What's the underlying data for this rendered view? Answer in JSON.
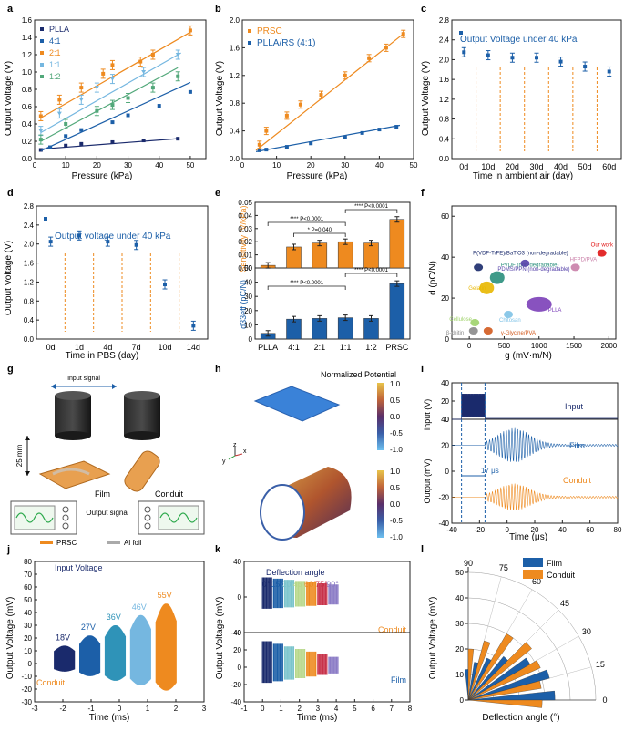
{
  "figure": {
    "colors": {
      "orange": "#ee8a1f",
      "blue": "#1c5fa8",
      "navy": "#1a2a6c",
      "light": "#75b7e0",
      "teal": "#7bc4cc",
      "green": "#52a87a",
      "dark": "#222222"
    }
  },
  "panels": {
    "a": {
      "letter": "a",
      "title": "",
      "xlabel": "Pressure (kPa)",
      "ylabel": "Output Voltage (V)"
    },
    "b": {
      "letter": "b",
      "title": "",
      "xlabel": "Pressure (kPa)",
      "ylabel": "Output Voltage (V)"
    },
    "c": {
      "letter": "c",
      "xlabel": "Time in ambient air (day)",
      "ylabel": "Output Voltage (V)"
    },
    "d": {
      "letter": "d",
      "xlabel": "Time in PBS (day)",
      "ylabel": "Output Voltage (V)"
    },
    "e": {
      "letter": "e",
      "ylabel_top": "Sensitivity (V/kPa)",
      "ylabel_bottom": "d33eff (pC/N)"
    },
    "f": {
      "letter": "f",
      "xlabel": "g  (mV·m/N)",
      "ylabel": "d  (pC/N)"
    },
    "g": {
      "letter": "g",
      "input_signal": "Input signal",
      "height": "25 mm",
      "film": "Film",
      "conduit": "Conduit",
      "output_signal": "Output signal",
      "legend_prsc": "PRSC",
      "legend_al": "Al foil"
    },
    "h": {
      "letter": "h",
      "title": "Normalized Potential",
      "ticks": [
        "1.0",
        "0.5",
        "0.0",
        "-0.5",
        "-1.0"
      ],
      "axis_z": "z",
      "axis_x": "x",
      "axis_y": "y"
    },
    "i": {
      "letter": "i",
      "xlabel": "Time (μs)",
      "ylabel_input": "Input (V)",
      "ylabel_output": "Output (mV)",
      "lbl_input": "Input",
      "lbl_film": "Film",
      "lbl_conduit": "Conduit",
      "delay": "17 μs"
    },
    "j": {
      "letter": "j",
      "xlabel": "Time (ms)",
      "ylabel": "Output Voltage (mV)",
      "title": "Input Voltage",
      "corner": "Conduit"
    },
    "k": {
      "letter": "k",
      "xlabel": "Time (ms)",
      "ylabel": "Output Voltage (mV)",
      "title": "Deflection angle",
      "lbl_conduit": "Conduit",
      "lbl_film": "Film"
    },
    "l": {
      "letter": "l",
      "xlabel": "Deflection angle (°)",
      "ylabel": "Output Voltage (mV)"
    }
  },
  "chart_data": [
    {
      "id": "a",
      "type": "scatter",
      "xlim": [
        0,
        55
      ],
      "ylim": [
        0,
        1.6
      ],
      "xticks": [
        0,
        10,
        20,
        30,
        40,
        50
      ],
      "yticks": [
        0.0,
        0.2,
        0.4,
        0.6,
        0.8,
        1.0,
        1.2,
        1.4,
        1.6
      ],
      "series": [
        {
          "name": "PLLA",
          "color": "#1a2a6c",
          "x": [
            2,
            5,
            10,
            15,
            25,
            35,
            46
          ],
          "y": [
            0.1,
            0.13,
            0.15,
            0.17,
            0.19,
            0.21,
            0.23
          ],
          "fit": [
            [
              2,
              0.11
            ],
            [
              46,
              0.23
            ]
          ]
        },
        {
          "name": "4:1",
          "color": "#1c5fa8",
          "x": [
            5,
            10,
            15,
            25,
            30,
            40,
            50
          ],
          "y": [
            0.13,
            0.26,
            0.33,
            0.42,
            0.5,
            0.61,
            0.77
          ],
          "fit": [
            [
              2,
              0.09
            ],
            [
              50,
              0.88
            ]
          ]
        },
        {
          "name": "2:1",
          "color": "#ee8a1f",
          "x": [
            2,
            8,
            15,
            22,
            25,
            34,
            38,
            50
          ],
          "y": [
            0.49,
            0.68,
            0.82,
            0.98,
            1.08,
            1.12,
            1.2,
            1.48
          ],
          "fit": [
            [
              2,
              0.47
            ],
            [
              50,
              1.46
            ]
          ]
        },
        {
          "name": "1:1",
          "color": "#75b7e0",
          "x": [
            2,
            8,
            15,
            20,
            25,
            35,
            46
          ],
          "y": [
            0.32,
            0.52,
            0.68,
            0.82,
            0.92,
            1.0,
            1.2
          ],
          "fit": [
            [
              2,
              0.3
            ],
            [
              47,
              1.22
            ]
          ]
        },
        {
          "name": "1:2",
          "color": "#52a87a",
          "x": [
            2,
            10,
            20,
            25,
            30,
            38,
            46
          ],
          "y": [
            0.22,
            0.4,
            0.55,
            0.62,
            0.7,
            0.82,
            0.95
          ],
          "fit": [
            [
              2,
              0.2
            ],
            [
              46,
              1.05
            ]
          ]
        }
      ]
    },
    {
      "id": "b",
      "type": "scatter",
      "xlim": [
        0,
        50
      ],
      "ylim": [
        0,
        2.0
      ],
      "xticks": [
        0,
        10,
        20,
        30,
        40,
        50
      ],
      "yticks": [
        0.0,
        0.4,
        0.8,
        1.2,
        1.6,
        2.0
      ],
      "series": [
        {
          "name": "PRSC",
          "color": "#ee8a1f",
          "x": [
            5,
            7,
            13,
            17,
            23,
            30,
            37,
            42,
            47
          ],
          "y": [
            0.2,
            0.4,
            0.62,
            0.78,
            0.92,
            1.2,
            1.45,
            1.6,
            1.8
          ],
          "fit": [
            [
              4,
              0.12
            ],
            [
              47,
              1.8
            ]
          ]
        },
        {
          "name": "PLLA/RS (4:1)",
          "color": "#1c5fa8",
          "x": [
            5,
            7,
            13,
            20,
            30,
            35,
            40,
            45
          ],
          "y": [
            0.12,
            0.13,
            0.17,
            0.22,
            0.31,
            0.37,
            0.42,
            0.46
          ],
          "fit": [
            [
              4,
              0.1
            ],
            [
              46,
              0.48
            ]
          ]
        }
      ]
    },
    {
      "id": "c",
      "type": "scatter",
      "title": "Output Voltage under 40 kPa",
      "categories": [
        "0d",
        "10d",
        "20d",
        "30d",
        "40d",
        "50d",
        "60d"
      ],
      "values": [
        2.15,
        2.09,
        2.04,
        2.04,
        1.96,
        1.86,
        1.76
      ],
      "ylim": [
        0,
        2.8
      ],
      "yticks": [
        0.0,
        0.4,
        0.8,
        1.2,
        1.6,
        2.0,
        2.4,
        2.8
      ]
    },
    {
      "id": "d",
      "type": "scatter",
      "title": "Output voltage under 40 kPa",
      "categories": [
        "0d",
        "1d",
        "4d",
        "7d",
        "10d",
        "14d"
      ],
      "values": [
        2.05,
        2.18,
        2.05,
        1.98,
        1.15,
        0.28
      ],
      "ylim": [
        0,
        2.8
      ],
      "yticks": [
        0.0,
        0.4,
        0.8,
        1.2,
        1.6,
        2.0,
        2.4,
        2.8
      ]
    },
    {
      "id": "e",
      "type": "bar",
      "categories": [
        "PLLA",
        "4:1",
        "2:1",
        "1:1",
        "1:2",
        "PRSC"
      ],
      "top": {
        "values": [
          0.002,
          0.016,
          0.019,
          0.02,
          0.019,
          0.037
        ],
        "ylim": [
          0,
          0.05
        ],
        "yticks": [
          0.0,
          0.01,
          0.02,
          0.03,
          0.04,
          0.05
        ],
        "color": "#ee8a1f",
        "annotations": [
          "**** P<0.0001",
          "* P=0.040",
          "**** P<0.0001"
        ]
      },
      "bottom": {
        "values": [
          4,
          14,
          14.5,
          15,
          14.5,
          39
        ],
        "ylim": [
          0,
          50
        ],
        "yticks": [
          0,
          10,
          20,
          30,
          40,
          50
        ],
        "color": "#1c5fa8",
        "annotations": [
          "**** P<0.0001",
          "**** P<0.0001"
        ]
      }
    },
    {
      "id": "f",
      "type": "scatter",
      "xlim": [
        -250,
        2100
      ],
      "ylim": [
        0,
        65
      ],
      "xticks": [
        0,
        500,
        1000,
        1500,
        2000
      ],
      "yticks": [
        0,
        20,
        40,
        60
      ],
      "points": [
        {
          "label": "P(VDF-TrFE)/BaTiO3 (non-degradable)",
          "x": 130,
          "y": 35,
          "color": "#1a2a6c"
        },
        {
          "label": "PVDF (non-degradable)",
          "x": 400,
          "y": 30,
          "color": "#2a8f7c"
        },
        {
          "label": "Gelatin",
          "x": 250,
          "y": 25,
          "color": "#e8b700"
        },
        {
          "label": "PDMS/PPN (non-degradable)",
          "x": 800,
          "y": 37,
          "color": "#5440a8"
        },
        {
          "label": "HFPD/PVA",
          "x": 1520,
          "y": 35,
          "color": "#c97fa8"
        },
        {
          "label": "Our work",
          "x": 1900,
          "y": 42,
          "color": "#e01515"
        },
        {
          "label": "PLLA",
          "x": 1000,
          "y": 17,
          "color": "#7b3fb8"
        },
        {
          "label": "Chitosan",
          "x": 560,
          "y": 12,
          "color": "#7ec2e6"
        },
        {
          "label": "Cellulose",
          "x": 80,
          "y": 8,
          "color": "#9fd36a"
        },
        {
          "label": "β-chitin",
          "x": 60,
          "y": 4,
          "color": "#8a8a8a"
        },
        {
          "label": "γ-Glycine/PVA",
          "x": 270,
          "y": 4,
          "color": "#d25a1e"
        }
      ]
    },
    {
      "id": "i",
      "type": "line",
      "xlim": [
        -40,
        80
      ],
      "xticks": [
        -40,
        -20,
        0,
        20,
        40,
        60,
        80
      ],
      "input": {
        "ylim": [
          0,
          40
        ],
        "yticks": [
          0,
          20,
          40
        ]
      },
      "output": {
        "ylim": [
          -40,
          40
        ],
        "yticks": [
          -40,
          -20,
          0,
          20,
          40
        ]
      },
      "markers": [
        -33,
        -16
      ]
    },
    {
      "id": "j",
      "type": "line",
      "xlim": [
        -3,
        3
      ],
      "ylim": [
        -30,
        80
      ],
      "xticks": [
        -3,
        -2,
        -1,
        0,
        1,
        2,
        3
      ],
      "yticks": [
        -30,
        -20,
        -10,
        0,
        10,
        20,
        30,
        40,
        50,
        60,
        70,
        80
      ],
      "series": [
        {
          "name": "18V",
          "color": "#1a2a6c",
          "amp": 14
        },
        {
          "name": "27V",
          "color": "#1c5fa8",
          "amp": 22
        },
        {
          "name": "36V",
          "color": "#2f93b8",
          "amp": 30
        },
        {
          "name": "46V",
          "color": "#75b7e0",
          "amp": 38
        },
        {
          "name": "55V",
          "color": "#ee8a1f",
          "amp": 47
        }
      ]
    },
    {
      "id": "k",
      "type": "line",
      "xlim": [
        -1,
        8
      ],
      "xticks": [
        -1,
        0,
        1,
        2,
        3,
        4,
        5,
        6,
        7,
        8
      ],
      "ylim_top": [
        -40,
        40
      ],
      "yticks_top": [
        -40,
        0,
        40
      ],
      "ylim_bottom": [
        -40,
        40
      ],
      "yticks_bottom": [
        -40,
        -20,
        0,
        20,
        40
      ],
      "series": [
        {
          "name": "0°",
          "color": "#1a2a6c"
        },
        {
          "name": "15°",
          "color": "#1c5fa8"
        },
        {
          "name": "30°",
          "color": "#7bc4cc"
        },
        {
          "name": "45°",
          "color": "#b7d88a"
        },
        {
          "name": "60°",
          "color": "#ee8a1f"
        },
        {
          "name": "75°",
          "color": "#c8324a"
        },
        {
          "name": "90°",
          "color": "#8b7bc6"
        }
      ]
    },
    {
      "id": "l",
      "type": "bar",
      "categories": [
        "0",
        "15",
        "30",
        "45",
        "60",
        "75",
        "90"
      ],
      "rlim": [
        0,
        50
      ],
      "rticks": [
        0,
        10,
        20,
        30,
        40,
        50
      ],
      "series": [
        {
          "name": "Film",
          "color": "#1c5fa8",
          "values": [
            34,
            33,
            28,
            22,
            18,
            15,
            12
          ]
        },
        {
          "name": "Conduit",
          "color": "#ee8a1f",
          "values": [
            29,
            29,
            31,
            32,
            30,
            24,
            20
          ]
        }
      ]
    }
  ]
}
